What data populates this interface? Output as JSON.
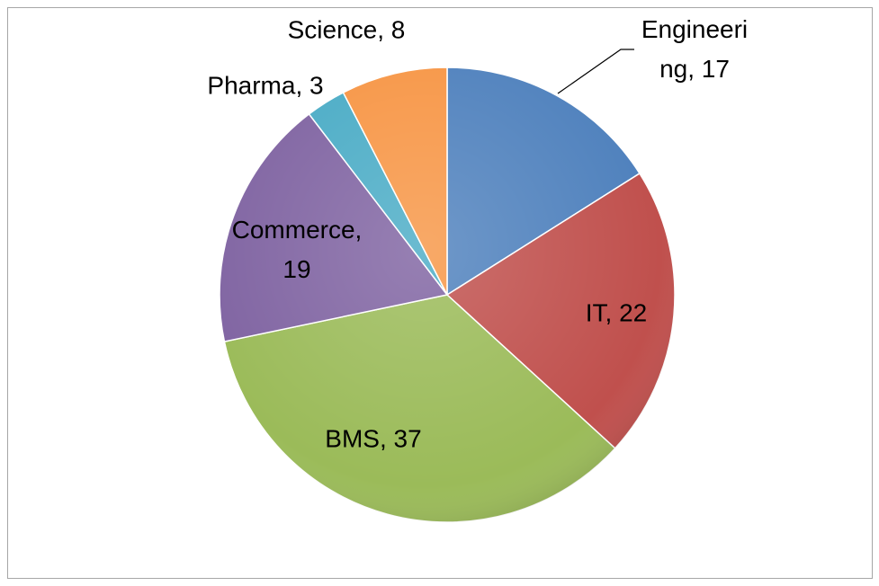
{
  "chart_data": {
    "type": "pie",
    "categories": [
      "Engineering",
      "IT",
      "BMS",
      "Commerce",
      "Pharma",
      "Science"
    ],
    "values": [
      17,
      22,
      37,
      19,
      3,
      8
    ],
    "value_labels": [
      "Engineering, 17",
      "IT, 22",
      "BMS, 37",
      "Commerce, 19",
      "Pharma, 3",
      "Science, 8"
    ],
    "colors": [
      "#4f81bd",
      "#c0504d",
      "#9bbb59",
      "#8064a2",
      "#4bacc6",
      "#f79646"
    ]
  }
}
